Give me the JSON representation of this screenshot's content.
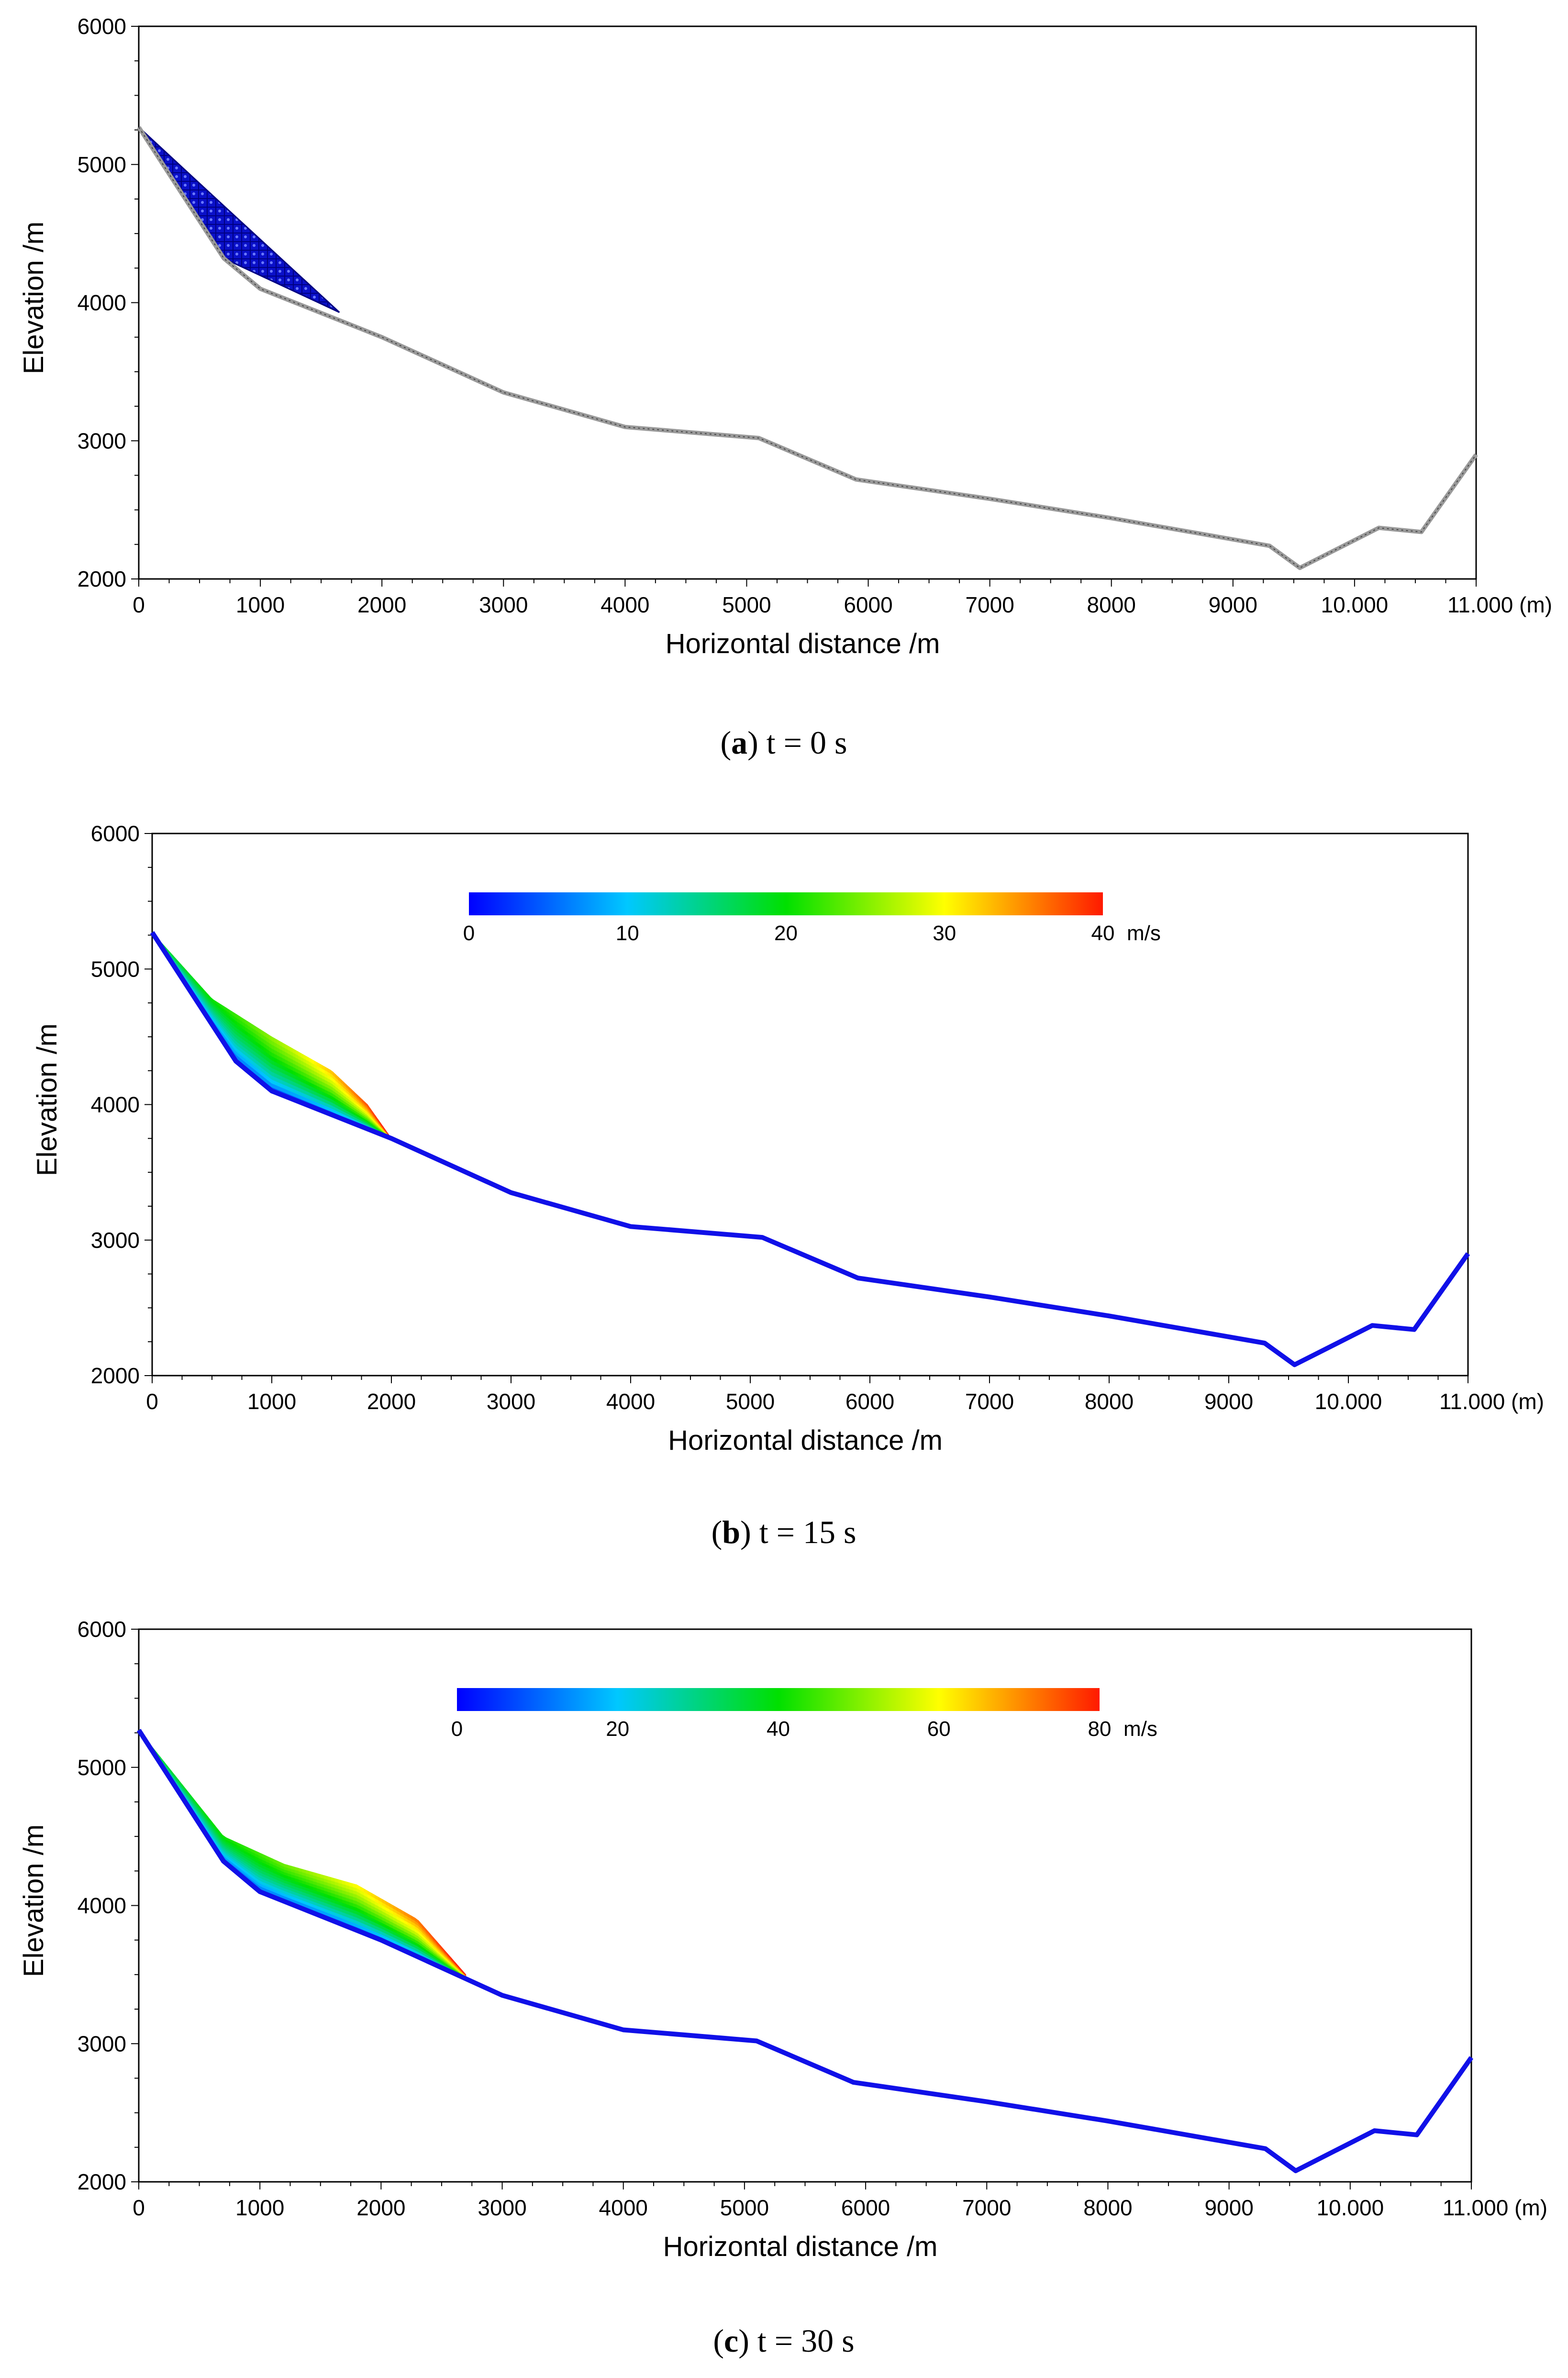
{
  "chart_data": [
    {
      "type": "area",
      "panel": "a",
      "caption": {
        "letter": "a",
        "text": "t = 0 s"
      },
      "xlabel": "Horizontal distance /m",
      "ylabel": "Elevation /m",
      "xlim": [
        0,
        11000
      ],
      "ylim": [
        2000,
        6000
      ],
      "xticks": [
        "0",
        "1000",
        "2000",
        "3000",
        "4000",
        "5000",
        "6000",
        "7000",
        "8000",
        "9000",
        "10.000",
        "11.000 (m)"
      ],
      "yticks": [
        "2000",
        "3000",
        "4000",
        "5000",
        "6000"
      ],
      "terrain": {
        "x": [
          0,
          700,
          1000,
          2000,
          3000,
          4000,
          5100,
          5900,
          7000,
          8000,
          9300,
          9550,
          10200,
          10550,
          11000
        ],
        "y": [
          5270,
          4320,
          4100,
          3750,
          3350,
          3100,
          3020,
          2720,
          2580,
          2440,
          2240,
          2080,
          2370,
          2340,
          2900
        ]
      },
      "slide_mass": {
        "x": [
          0,
          700,
          1650,
          1650
        ],
        "top": [
          5270,
          4700,
          3930,
          3930
        ],
        "bottom": [
          5270,
          4320,
          3930,
          3930
        ],
        "color": "#0000cc"
      }
    },
    {
      "type": "area",
      "panel": "b",
      "caption": {
        "letter": "b",
        "text": "t = 15 s"
      },
      "xlabel": "Horizontal distance /m",
      "ylabel": "Elevation /m",
      "xlim": [
        0,
        11000
      ],
      "ylim": [
        2000,
        6000
      ],
      "xticks": [
        "0",
        "1000",
        "2000",
        "3000",
        "4000",
        "5000",
        "6000",
        "7000",
        "8000",
        "9000",
        "10.000",
        "11.000 (m)"
      ],
      "yticks": [
        "2000",
        "3000",
        "4000",
        "5000",
        "6000"
      ],
      "colorbar": {
        "min": 0,
        "max": 40,
        "ticks": [
          "0",
          "10",
          "20",
          "30",
          "40"
        ],
        "unit": "m/s"
      },
      "terrain": {
        "x": [
          0,
          700,
          1000,
          2000,
          3000,
          4000,
          5100,
          5900,
          7000,
          8000,
          9300,
          9550,
          10200,
          10550,
          11000
        ],
        "y": [
          5270,
          4320,
          4100,
          3750,
          3350,
          3100,
          3020,
          2720,
          2580,
          2440,
          2240,
          2080,
          2370,
          2340,
          2900
        ]
      },
      "slide_mass": {
        "front_x": 2000,
        "upper": {
          "x": [
            0,
            500,
            1000,
            1500,
            1800,
            2000
          ],
          "y": [
            5270,
            4780,
            4500,
            4250,
            4000,
            3750
          ]
        },
        "max_velocity": 40
      }
    },
    {
      "type": "area",
      "panel": "c",
      "caption": {
        "letter": "c",
        "text": "t = 30 s"
      },
      "xlabel": "Horizontal distance /m",
      "ylabel": "Elevation /m",
      "xlim": [
        0,
        11000
      ],
      "ylim": [
        2000,
        6000
      ],
      "xticks": [
        "0",
        "1000",
        "2000",
        "3000",
        "4000",
        "5000",
        "6000",
        "7000",
        "8000",
        "9000",
        "10.000",
        "11.000 (m)"
      ],
      "yticks": [
        "2000",
        "3000",
        "4000",
        "5000",
        "6000"
      ],
      "colorbar": {
        "min": 0,
        "max": 80,
        "ticks": [
          "0",
          "20",
          "40",
          "60",
          "80"
        ],
        "unit": "m/s"
      },
      "terrain": {
        "x": [
          0,
          700,
          1000,
          2000,
          3000,
          4000,
          5100,
          5900,
          7000,
          8000,
          9300,
          9550,
          10200,
          10550,
          11000
        ],
        "y": [
          5270,
          4320,
          4100,
          3750,
          3350,
          3100,
          3020,
          2720,
          2580,
          2440,
          2240,
          2080,
          2370,
          2340,
          2900
        ]
      },
      "slide_mass": {
        "front_x": 2700,
        "upper": {
          "x": [
            0,
            700,
            1200,
            1800,
            2300,
            2700
          ],
          "y": [
            5270,
            4500,
            4300,
            4150,
            3900,
            3500
          ]
        },
        "max_velocity": 80
      }
    }
  ]
}
